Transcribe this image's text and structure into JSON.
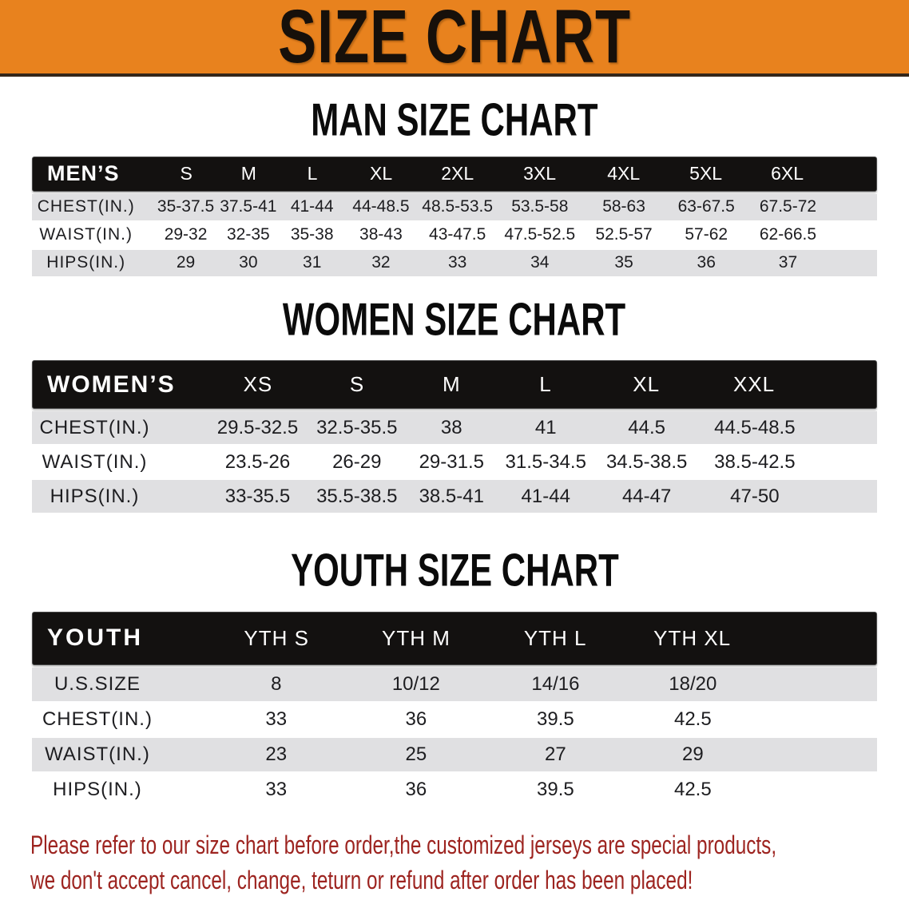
{
  "banner": {
    "title": "SIZE CHART",
    "bg_color": "#e8821e",
    "text_color": "#17100a"
  },
  "sections": [
    {
      "id": "men",
      "title": "MAN SIZE CHART",
      "header_label": "MEN’S",
      "sizes": [
        "S",
        "M",
        "L",
        "XL",
        "2XL",
        "3XL",
        "4XL",
        "5XL",
        "6XL"
      ],
      "rows": [
        {
          "label": "CHEST(IN.)",
          "values": [
            "35-37.5",
            "37.5-41",
            "41-44",
            "44-48.5",
            "48.5-53.5",
            "53.5-58",
            "58-63",
            "63-67.5",
            "67.5-72"
          ]
        },
        {
          "label": "WAIST(IN.)",
          "values": [
            "29-32",
            "32-35",
            "35-38",
            "38-43",
            "43-47.5",
            "47.5-52.5",
            "52.5-57",
            "57-62",
            "62-66.5"
          ]
        },
        {
          "label": "HIPS(IN.)",
          "values": [
            "29",
            "30",
            "31",
            "32",
            "33",
            "34",
            "35",
            "36",
            "37"
          ]
        }
      ]
    },
    {
      "id": "women",
      "title": "WOMEN SIZE CHART",
      "header_label": "WOMEN’S",
      "sizes": [
        "XS",
        "S",
        "M",
        "L",
        "XL",
        "XXL"
      ],
      "rows": [
        {
          "label": "CHEST(IN.)",
          "values": [
            "29.5-32.5",
            "32.5-35.5",
            "38",
            "41",
            "44.5",
            "44.5-48.5"
          ]
        },
        {
          "label": "WAIST(IN.)",
          "values": [
            "23.5-26",
            "26-29",
            "29-31.5",
            "31.5-34.5",
            "34.5-38.5",
            "38.5-42.5"
          ]
        },
        {
          "label": "HIPS(IN.)",
          "values": [
            "33-35.5",
            "35.5-38.5",
            "38.5-41",
            "41-44",
            "44-47",
            "47-50"
          ]
        }
      ]
    },
    {
      "id": "youth",
      "title": "YOUTH SIZE CHART",
      "header_label": "YOUTH",
      "sizes": [
        "YTH S",
        "YTH M",
        "YTH L",
        "YTH XL"
      ],
      "rows": [
        {
          "label": "U.S.SIZE",
          "values": [
            "8",
            "10/12",
            "14/16",
            "18/20"
          ]
        },
        {
          "label": "CHEST(IN.)",
          "values": [
            "33",
            "36",
            "39.5",
            "42.5"
          ]
        },
        {
          "label": "WAIST(IN.)",
          "values": [
            "23",
            "25",
            "27",
            "29"
          ]
        },
        {
          "label": "HIPS(IN.)",
          "values": [
            "33",
            "36",
            "39.5",
            "42.5"
          ]
        }
      ]
    }
  ],
  "disclaimer": {
    "line1": "Please refer to our size chart before order,the customized jerseys are special products,",
    "line2": "we don't accept cancel, change, teturn or refund after order has been placed!",
    "color": "#9d2420"
  },
  "chart_data": [
    {
      "type": "table",
      "title": "MAN SIZE CHART",
      "columns": [
        "MEN’S",
        "S",
        "M",
        "L",
        "XL",
        "2XL",
        "3XL",
        "4XL",
        "5XL",
        "6XL"
      ],
      "rows": [
        [
          "CHEST(IN.)",
          "35-37.5",
          "37.5-41",
          "41-44",
          "44-48.5",
          "48.5-53.5",
          "53.5-58",
          "58-63",
          "63-67.5",
          "67.5-72"
        ],
        [
          "WAIST(IN.)",
          "29-32",
          "32-35",
          "35-38",
          "38-43",
          "43-47.5",
          "47.5-52.5",
          "52.5-57",
          "57-62",
          "62-66.5"
        ],
        [
          "HIPS(IN.)",
          "29",
          "30",
          "31",
          "32",
          "33",
          "34",
          "35",
          "36",
          "37"
        ]
      ]
    },
    {
      "type": "table",
      "title": "WOMEN SIZE CHART",
      "columns": [
        "WOMEN’S",
        "XS",
        "S",
        "M",
        "L",
        "XL",
        "XXL"
      ],
      "rows": [
        [
          "CHEST(IN.)",
          "29.5-32.5",
          "32.5-35.5",
          "38",
          "41",
          "44.5",
          "44.5-48.5"
        ],
        [
          "WAIST(IN.)",
          "23.5-26",
          "26-29",
          "29-31.5",
          "31.5-34.5",
          "34.5-38.5",
          "38.5-42.5"
        ],
        [
          "HIPS(IN.)",
          "33-35.5",
          "35.5-38.5",
          "38.5-41",
          "41-44",
          "44-47",
          "47-50"
        ]
      ]
    },
    {
      "type": "table",
      "title": "YOUTH SIZE CHART",
      "columns": [
        "YOUTH",
        "YTH S",
        "YTH M",
        "YTH L",
        "YTH XL"
      ],
      "rows": [
        [
          "U.S.SIZE",
          "8",
          "10/12",
          "14/16",
          "18/20"
        ],
        [
          "CHEST(IN.)",
          "33",
          "36",
          "39.5",
          "42.5"
        ],
        [
          "WAIST(IN.)",
          "23",
          "25",
          "27",
          "29"
        ],
        [
          "HIPS(IN.)",
          "33",
          "36",
          "39.5",
          "42.5"
        ]
      ]
    }
  ]
}
